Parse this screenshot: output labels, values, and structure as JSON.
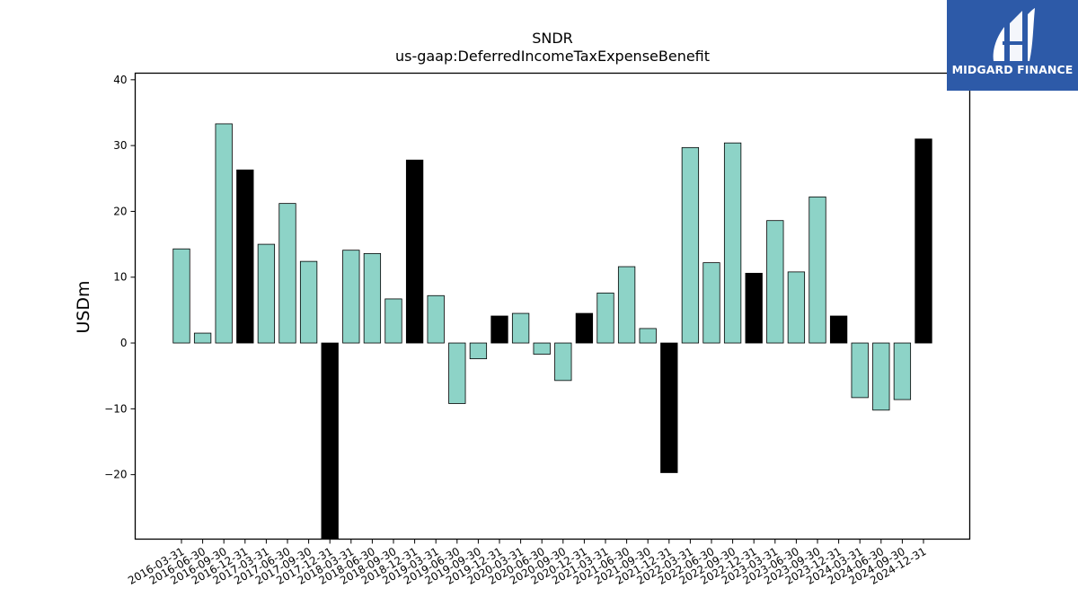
{
  "chart_data": {
    "type": "bar",
    "title": "SNDR",
    "subtitle": "us-gaap:DeferredIncomeTaxExpenseBenefit",
    "xlabel": "",
    "ylabel": "USDm",
    "ylim": [
      -29.8,
      41
    ],
    "yticks": [
      -20,
      -10,
      0,
      10,
      20,
      30,
      40
    ],
    "grid": false,
    "colors": {
      "quarter": "#8dd3c7",
      "year_end": "#000000",
      "edge": "#000000"
    },
    "categories": [
      "2016-03-31",
      "2016-06-30",
      "2016-09-30",
      "2016-12-31",
      "2017-03-31",
      "2017-06-30",
      "2017-09-30",
      "2017-12-31",
      "2018-03-31",
      "2018-06-30",
      "2018-09-30",
      "2018-12-31",
      "2019-03-31",
      "2019-06-30",
      "2019-09-30",
      "2019-12-31",
      "2020-03-31",
      "2020-06-30",
      "2020-09-30",
      "2020-12-31",
      "2021-03-31",
      "2021-06-30",
      "2021-09-30",
      "2021-12-31",
      "2022-03-31",
      "2022-06-30",
      "2022-09-30",
      "2022-12-31",
      "2023-03-31",
      "2023-06-30",
      "2023-09-30",
      "2023-12-31",
      "2024-03-31",
      "2024-06-30",
      "2024-09-30",
      "2024-12-31"
    ],
    "values": [
      14.3,
      1.5,
      33.3,
      26.3,
      15.0,
      21.2,
      12.4,
      -30.0,
      14.1,
      13.6,
      6.7,
      27.8,
      7.2,
      -9.2,
      -2.4,
      4.1,
      4.5,
      -1.7,
      -5.7,
      4.5,
      7.6,
      11.6,
      2.2,
      -19.7,
      29.7,
      12.2,
      30.4,
      10.6,
      18.6,
      10.8,
      22.2,
      4.1,
      -8.3,
      -10.2,
      -8.6,
      31.0
    ]
  },
  "logo": {
    "text": "MIDGARD FINANCE"
  }
}
